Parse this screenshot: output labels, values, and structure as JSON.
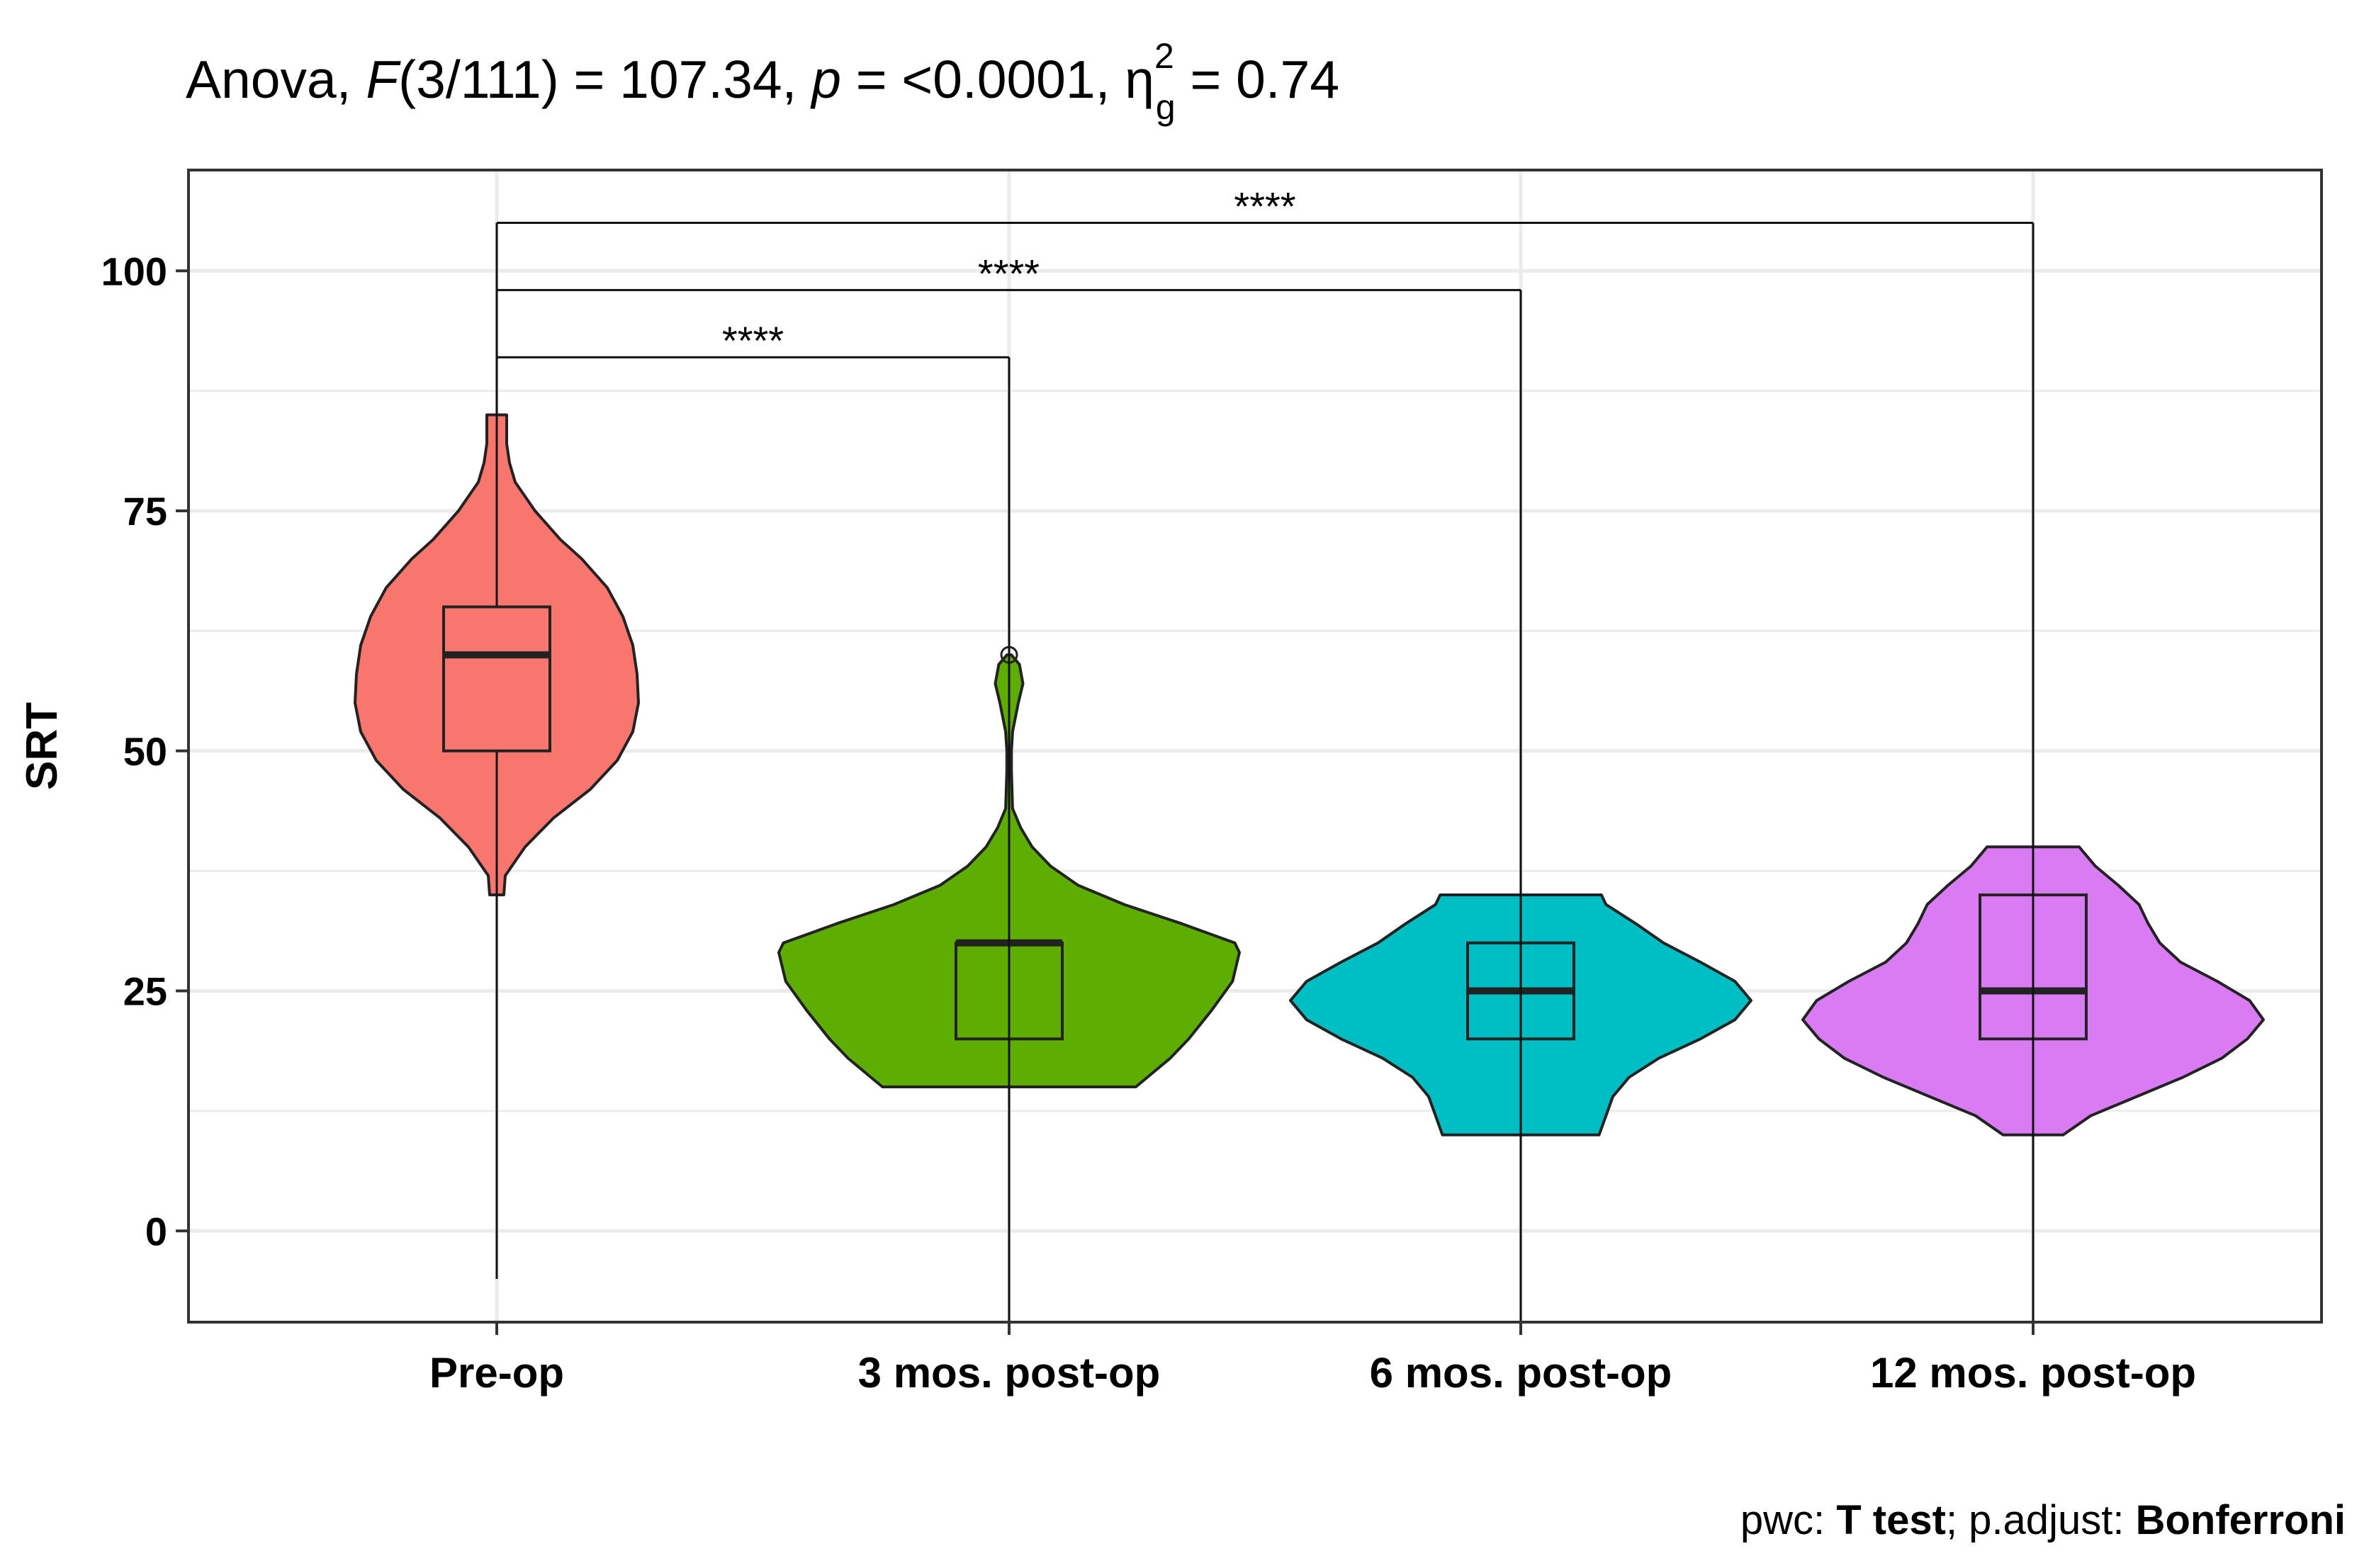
{
  "title": {
    "prefix": "Anova, ",
    "f_symbol": "F",
    "f_args": "(3/111) = 107.34, ",
    "p_symbol": "p",
    "p_value": " = <0.0001, ",
    "eta_symbol": "η",
    "eta_sub": "g",
    "eta_sup": "2",
    "eta_value": " = 0.74"
  },
  "caption": {
    "pwc_label": "pwc: ",
    "pwc_value": "T test",
    "adjust_label": "; p.adjust: ",
    "adjust_value": "Bonferroni"
  },
  "chart_data": {
    "type": "violin",
    "ylabel": "SRT",
    "xlabel": "",
    "ylim": [
      -9.5,
      110.5
    ],
    "yticks": [
      0,
      25,
      50,
      75,
      100
    ],
    "grid": true,
    "legend": "none",
    "categories": [
      "Pre-op",
      "3 mos. post-op",
      "6 mos. post-op",
      "12 mos. post-op"
    ],
    "colors": [
      "#F8766D",
      "#5DAE00",
      "#00BFC4",
      "#D97BF2"
    ],
    "violins": [
      {
        "min": 35,
        "max": 85,
        "profile": [
          [
            35,
            0.05
          ],
          [
            37,
            0.06
          ],
          [
            40,
            0.2
          ],
          [
            43,
            0.4
          ],
          [
            46,
            0.66
          ],
          [
            49,
            0.85
          ],
          [
            52,
            0.96
          ],
          [
            55,
            1.0
          ],
          [
            58,
            0.99
          ],
          [
            61,
            0.96
          ],
          [
            64,
            0.89
          ],
          [
            67,
            0.78
          ],
          [
            70,
            0.6
          ],
          [
            72,
            0.45
          ],
          [
            75,
            0.27
          ],
          [
            78,
            0.13
          ],
          [
            80,
            0.09
          ],
          [
            82,
            0.07
          ],
          [
            85,
            0.07
          ]
        ]
      },
      {
        "min": 15,
        "max": 60,
        "profile": [
          [
            15,
            0.55
          ],
          [
            16,
            0.6
          ],
          [
            18,
            0.7
          ],
          [
            20,
            0.78
          ],
          [
            23,
            0.88
          ],
          [
            26,
            0.97
          ],
          [
            29,
            1.0
          ],
          [
            30,
            0.98
          ],
          [
            32,
            0.75
          ],
          [
            34,
            0.5
          ],
          [
            36,
            0.3
          ],
          [
            38,
            0.18
          ],
          [
            40,
            0.1
          ],
          [
            42,
            0.05
          ],
          [
            44,
            0.015
          ],
          [
            48,
            0.01
          ],
          [
            50,
            0.01
          ],
          [
            52,
            0.015
          ],
          [
            55,
            0.04
          ],
          [
            57,
            0.06
          ],
          [
            59,
            0.045
          ],
          [
            60,
            0.01
          ]
        ]
      },
      {
        "min": 10,
        "max": 35,
        "profile": [
          [
            10,
            0.34
          ],
          [
            12,
            0.37
          ],
          [
            14,
            0.4
          ],
          [
            16,
            0.47
          ],
          [
            18,
            0.6
          ],
          [
            20,
            0.78
          ],
          [
            22,
            0.93
          ],
          [
            24,
            1.0
          ],
          [
            26,
            0.93
          ],
          [
            28,
            0.78
          ],
          [
            30,
            0.62
          ],
          [
            32,
            0.5
          ],
          [
            34,
            0.37
          ],
          [
            35,
            0.35
          ]
        ]
      },
      {
        "min": 10,
        "max": 40,
        "profile": [
          [
            10,
            0.13
          ],
          [
            12,
            0.25
          ],
          [
            14,
            0.45
          ],
          [
            16,
            0.65
          ],
          [
            18,
            0.82
          ],
          [
            20,
            0.93
          ],
          [
            22,
            1.0
          ],
          [
            24,
            0.94
          ],
          [
            26,
            0.8
          ],
          [
            28,
            0.64
          ],
          [
            30,
            0.55
          ],
          [
            32,
            0.5
          ],
          [
            34,
            0.46
          ],
          [
            36,
            0.37
          ],
          [
            38,
            0.27
          ],
          [
            40,
            0.2
          ]
        ]
      }
    ],
    "boxes": [
      {
        "whisker_low": -5,
        "q1": 50,
        "median": 60,
        "q3": 65,
        "whisker_high": 85
      },
      {
        "whisker_low": -5,
        "q1": 20,
        "median": 30,
        "q3": 30,
        "whisker_high": 35,
        "outliers": [
          60
        ]
      },
      {
        "whisker_low": 3,
        "q1": 20,
        "median": 25,
        "q3": 30,
        "whisker_high": 35
      },
      {
        "whisker_low": 10,
        "q1": 20,
        "median": 25,
        "q3": 35,
        "whisker_high": 40
      }
    ],
    "brackets": [
      {
        "from": "Pre-op",
        "to": "3 mos. post-op",
        "y": 91,
        "label": "****"
      },
      {
        "from": "Pre-op",
        "to": "6 mos. post-op",
        "y": 98,
        "label": "****"
      },
      {
        "from": "Pre-op",
        "to": "12 mos. post-op",
        "y": 105,
        "label": "****"
      }
    ]
  }
}
